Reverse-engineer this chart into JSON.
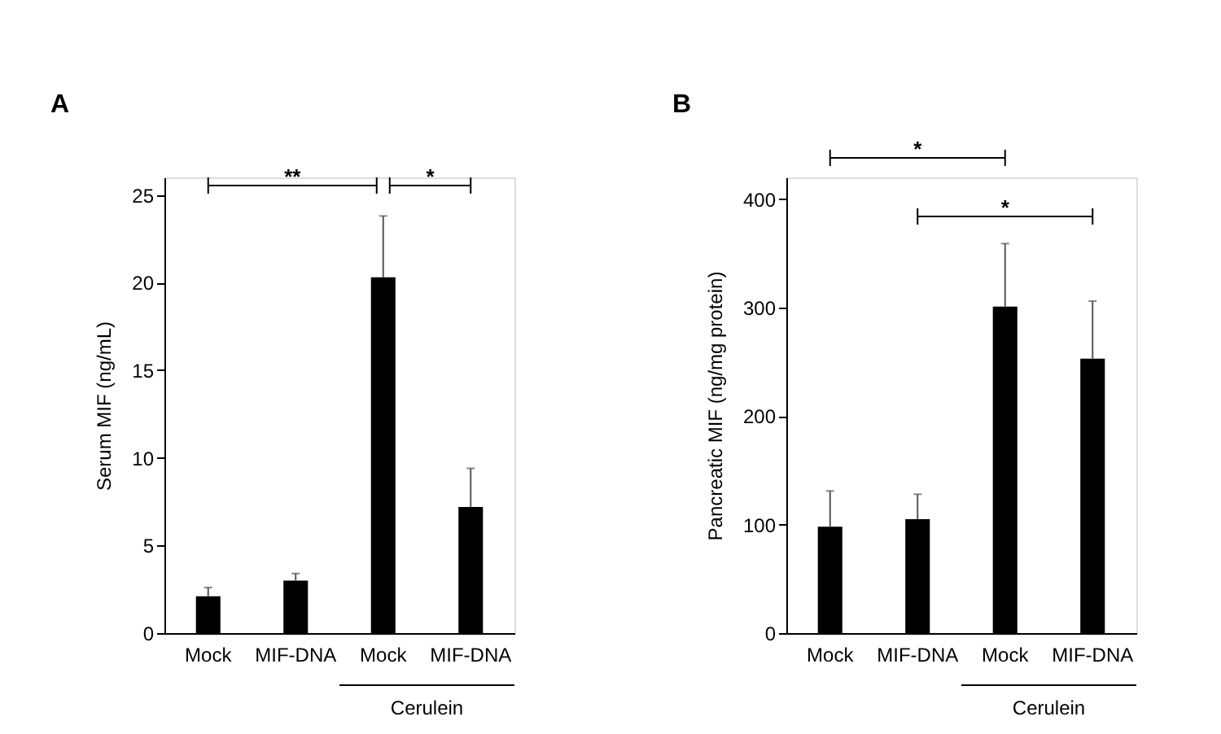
{
  "chart_data": [
    {
      "type": "bar",
      "ylabel": "Serum MIF (ng/mL)",
      "categories": [
        "Mock",
        "MIF-DNA",
        "Mock",
        "MIF-DNA"
      ],
      "values": [
        2.1,
        3.0,
        20.3,
        7.2
      ],
      "color": "#000000",
      "errors": [
        [
          2.1,
          2.6
        ],
        [
          3.0,
          3.4
        ],
        [
          20.3,
          23.8
        ],
        [
          7.2,
          9.4
        ]
      ],
      "ylim": [
        0,
        26
      ],
      "yticks": [
        0,
        5,
        10,
        15,
        20,
        25
      ],
      "grid": false,
      "annotations": [
        "A",
        "**",
        "*",
        "Cerulein"
      ]
    },
    {
      "type": "bar",
      "ylabel": "Pancreatic MIF (ng/mg protein)",
      "categories": [
        "Mock",
        "MIF-DNA",
        "Mock",
        "MIF-DNA"
      ],
      "values": [
        98,
        105,
        301,
        253
      ],
      "color": "#000000",
      "errors": [
        [
          98,
          131
        ],
        [
          105,
          128
        ],
        [
          301,
          359
        ],
        [
          253,
          306
        ]
      ],
      "ylim": [
        0,
        420
      ],
      "yticks": [
        0,
        100,
        200,
        300,
        400
      ],
      "grid": false,
      "annotations": [
        "B",
        "*",
        "*",
        "Cerulein"
      ]
    }
  ]
}
